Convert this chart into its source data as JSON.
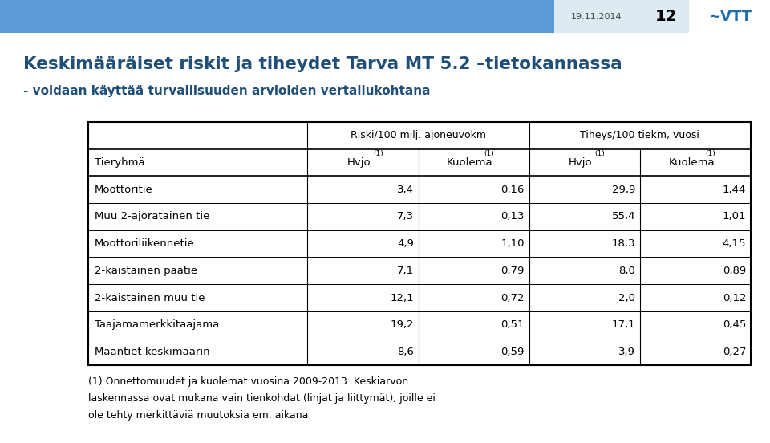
{
  "title_line1": "Keskimääräiset riskit ja tiheydet Tarva MT 5.2 –tietokannassa",
  "title_line2": "- voidaan käyttää turvallisuuden arvioiden vertailukohtana",
  "header_date": "19.11.2014",
  "header_page": "12",
  "col_group1": "Riski/100 milj. ajoneuvokm",
  "col_group2": "Tiheys/100 tiekm, vuosi",
  "col_sub1": "Hvjo",
  "col_sub2": "Kuolema",
  "col_sub3": "Hvjo",
  "col_sub4": "Kuolema",
  "col_sub_super": "(1)",
  "col0_header": "Tieryhmä",
  "rows": [
    {
      "name": "Moottoritie",
      "v1": "3,4",
      "v2": "0,16",
      "v3": "29,9",
      "v4": "1,44"
    },
    {
      "name": "Muu 2-ajoratainen tie",
      "v1": "7,3",
      "v2": "0,13",
      "v3": "55,4",
      "v4": "1,01"
    },
    {
      "name": "Moottoriliikennetie",
      "v1": "4,9",
      "v2": "1,10",
      "v3": "18,3",
      "v4": "4,15"
    },
    {
      "name": "2-kaistainen päätie",
      "v1": "7,1",
      "v2": "0,79",
      "v3": "8,0",
      "v4": "0,89"
    },
    {
      "name": "2-kaistainen muu tie",
      "v1": "12,1",
      "v2": "0,72",
      "v3": "2,0",
      "v4": "0,12"
    },
    {
      "name": "Taajamamerkkitaajama",
      "v1": "19,2",
      "v2": "0,51",
      "v3": "17,1",
      "v4": "0,45"
    },
    {
      "name": "Maantiet keskimäärin",
      "v1": "8,6",
      "v2": "0,59",
      "v3": "3,9",
      "v4": "0,27"
    }
  ],
  "footnote_line1": "(1) Onnettomuudet ja kuolemat vuosina 2009-2013. Keskiarvon",
  "footnote_line2": "laskennassa ovat mukana vain tienkohdat (linjat ja liittymät), joille ei",
  "footnote_line3": "ole tehty merkittäviä muutoksia em. aikana.",
  "bg_color": "#ffffff",
  "title_color": "#1F4E79",
  "subtitle_color": "#1F4E79",
  "header_bar_color": "#5B9BD5",
  "text_color": "#000000",
  "footnote_color": "#000000"
}
